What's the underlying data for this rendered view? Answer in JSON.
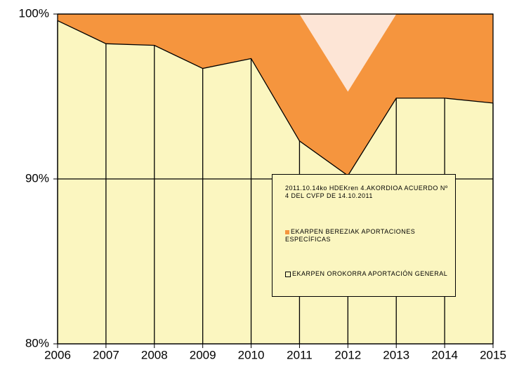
{
  "chart_data": {
    "type": "stacked_area",
    "x": [
      2006,
      2007,
      2008,
      2009,
      2010,
      2011,
      2012,
      2013,
      2014,
      2015
    ],
    "series": [
      {
        "name": "2011.10.14ko HDEKren 4.AKORDIOA ACUERDO Nº 4 DEL CVFP DE 14.10.2011",
        "color": "#fde5d6",
        "values": [
          0,
          0,
          0,
          0,
          0,
          0,
          4.7,
          0,
          0,
          0
        ]
      },
      {
        "name": "EKARPEN BEREZIAK APORTACIONES ESPECÍFICAS",
        "color": "#f5953e",
        "values": [
          0.4,
          1.8,
          1.9,
          3.3,
          2.7,
          7.7,
          5.1,
          5.1,
          5.1,
          5.4
        ]
      },
      {
        "name": "EKARPEN OROKORRA APORTACIÓN GENERAL",
        "color": "#fbf6c0",
        "values": [
          99.6,
          98.2,
          98.1,
          96.7,
          97.3,
          92.3,
          90.2,
          94.9,
          94.9,
          94.6
        ]
      }
    ],
    "xlim": [
      2006,
      2015
    ],
    "xticks": [
      2006,
      2007,
      2008,
      2009,
      2010,
      2011,
      2012,
      2013,
      2014,
      2015
    ],
    "ylim": [
      80,
      100
    ],
    "yticks": [
      {
        "value": 80,
        "label": "80%"
      },
      {
        "value": 90,
        "label": "90%"
      },
      {
        "value": 100,
        "label": "100%"
      }
    ],
    "grid": true
  }
}
